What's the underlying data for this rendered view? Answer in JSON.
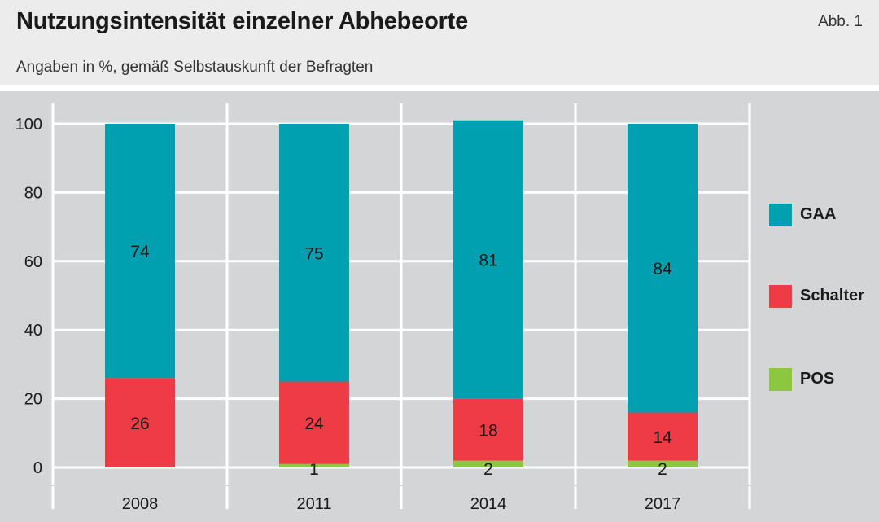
{
  "header": {
    "title": "Nutzungsintensität einzelner Abhebeorte",
    "subtitle": "Angaben in %, gemäß Selbstauskunft der Befragten",
    "figure_ref": "Abb. 1"
  },
  "chart_data": {
    "type": "bar",
    "stacked": true,
    "categories": [
      "2008",
      "2011",
      "2014",
      "2017"
    ],
    "series": [
      {
        "name": "POS",
        "values": [
          0,
          1,
          2,
          2
        ],
        "labels": [
          "",
          "1",
          "2",
          "2"
        ],
        "color": "#8dc63f"
      },
      {
        "name": "Schalter",
        "values": [
          26,
          24,
          18,
          14
        ],
        "labels": [
          "26",
          "24",
          "18",
          "14"
        ],
        "color": "#ef3b45"
      },
      {
        "name": "GAA",
        "values": [
          74,
          75,
          81,
          84
        ],
        "labels": [
          "74",
          "75",
          "81",
          "84"
        ],
        "color": "#00a0b0"
      }
    ],
    "legend_order": [
      "GAA",
      "Schalter",
      "POS"
    ],
    "legend_position": "right",
    "ylim": [
      0,
      100
    ],
    "yticks": [
      "0",
      "20",
      "40",
      "60",
      "80",
      "100"
    ],
    "xlabel": "",
    "ylabel": "",
    "grid": true
  }
}
